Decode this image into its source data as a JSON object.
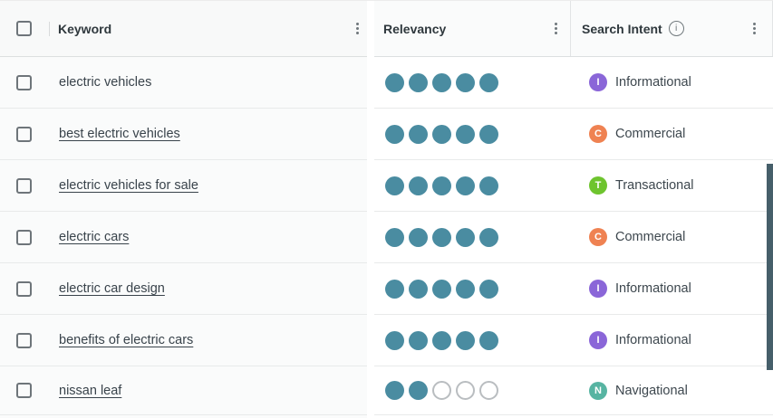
{
  "table": {
    "columns": {
      "keyword": {
        "label": "Keyword"
      },
      "relevancy": {
        "label": "Relevancy"
      },
      "search_intent": {
        "label": "Search Intent"
      }
    },
    "relevancy_max": 5
  },
  "rows": [
    {
      "keyword": "electric vehicles",
      "is_link": false,
      "relevancy": 5,
      "intent": "Informational",
      "intent_letter": "I",
      "intent_key": "informational"
    },
    {
      "keyword": "best electric vehicles",
      "is_link": true,
      "relevancy": 5,
      "intent": "Commercial",
      "intent_letter": "C",
      "intent_key": "commercial"
    },
    {
      "keyword": "electric vehicles for sale",
      "is_link": true,
      "relevancy": 5,
      "intent": "Transactional",
      "intent_letter": "T",
      "intent_key": "transactional"
    },
    {
      "keyword": "electric cars",
      "is_link": true,
      "relevancy": 5,
      "intent": "Commercial",
      "intent_letter": "C",
      "intent_key": "commercial"
    },
    {
      "keyword": "electric car design",
      "is_link": true,
      "relevancy": 5,
      "intent": "Informational",
      "intent_letter": "I",
      "intent_key": "informational"
    },
    {
      "keyword": "benefits of electric cars",
      "is_link": true,
      "relevancy": 5,
      "intent": "Informational",
      "intent_letter": "I",
      "intent_key": "informational"
    },
    {
      "keyword": "nissan leaf",
      "is_link": true,
      "relevancy": 2,
      "intent": "Navigational",
      "intent_letter": "N",
      "intent_key": "navigational"
    }
  ],
  "colors": {
    "relevancy_dot": "#4a8ca1",
    "empty_dot_border": "#b9bdc0",
    "informational": "#8a66d8",
    "commercial": "#ef8252",
    "transactional": "#6ec42e",
    "navigational": "#57b4a2",
    "scrollbar_thumb": "#465f6a"
  },
  "icons": {
    "info_glyph": "i"
  }
}
